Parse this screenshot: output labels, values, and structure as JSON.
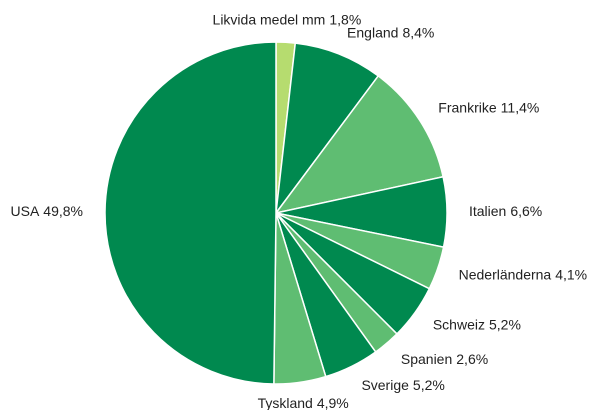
{
  "chart_data": {
    "type": "pie",
    "categories": [
      "Likvida medel mm",
      "England",
      "Frankrike",
      "Italien",
      "Nederländerna",
      "Schweiz",
      "Spanien",
      "Sverige",
      "Tyskland",
      "USA"
    ],
    "values": [
      1.8,
      8.4,
      11.4,
      6.6,
      4.1,
      5.2,
      2.6,
      5.2,
      4.9,
      49.8
    ],
    "value_labels": [
      "1,8%",
      "8,4%",
      "11,4%",
      "6,6%",
      "4,1%",
      "5,2%",
      "2,6%",
      "5,2%",
      "4,9%",
      "49,8%"
    ],
    "colors": [
      "#b6dc6f",
      "#00894f",
      "#5fbd72",
      "#00894f",
      "#5fbd72",
      "#00894f",
      "#5fbd72",
      "#00894f",
      "#5fbd72",
      "#00894f"
    ]
  }
}
